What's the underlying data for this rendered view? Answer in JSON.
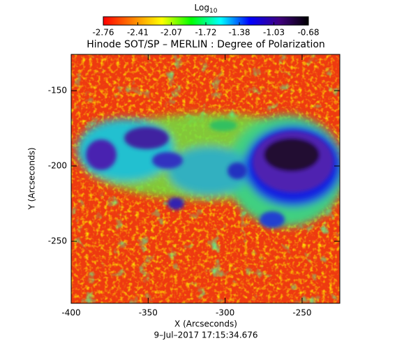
{
  "chart_data": {
    "type": "heatmap",
    "title": "Hinode SOT/SP – MERLIN : Degree of Polarization",
    "subtitle": "9–Jul–2017 17:15:34.676",
    "x_label": "X (Arcseconds)",
    "y_label": "Y (Arcseconds)",
    "xlim": [
      -400,
      -225.5
    ],
    "xticks": [
      -400,
      -350,
      -300,
      -250
    ],
    "ylim": [
      -291.2,
      -125.9
    ],
    "yticks": [
      -250,
      -200,
      -150
    ],
    "colorbar": {
      "label": "Log",
      "label_subscript": "10",
      "lim": [
        -2.76,
        -0.68
      ],
      "ticks": [
        -2.76,
        -2.41,
        -2.07,
        -1.72,
        -1.38,
        -1.03,
        -0.68
      ],
      "colors": [
        "#ff0000",
        "#ff8000",
        "#ffff00",
        "#00ff00",
        "#00ffff",
        "#0000ff",
        "#400080",
        "#000000"
      ]
    }
  }
}
